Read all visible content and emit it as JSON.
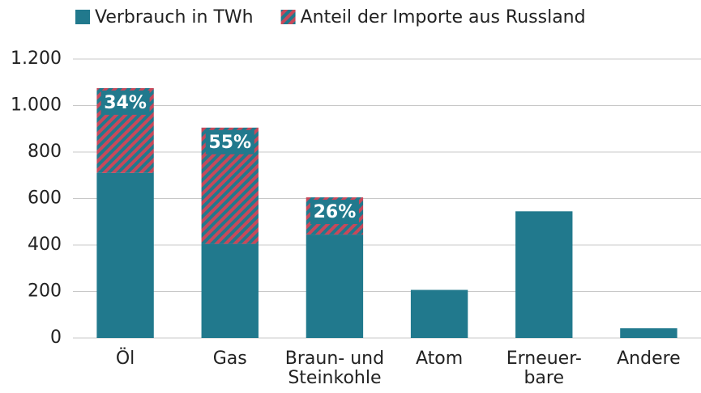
{
  "chart_data": {
    "type": "stacked_bar",
    "categories": [
      "Öl",
      "Gas",
      "Braun- und\nSteinkohle",
      "Atom",
      "Erneuer-\nbare",
      "Andere"
    ],
    "series": [
      {
        "name": "Verbrauch in TWh",
        "color": "#21798d",
        "values": [
          710,
          405,
          445,
          207,
          545,
          42
        ]
      },
      {
        "name": "Anteil der Importe aus Russland",
        "color": "#c8485a",
        "values": [
          365,
          500,
          160,
          null,
          null,
          null
        ]
      }
    ],
    "annotations": [
      "34%",
      "55%",
      "26%"
    ],
    "ylim": [
      0,
      1200
    ],
    "yticks": [
      0,
      200,
      400,
      600,
      800,
      {
        "value": 1000,
        "label": "1.000"
      },
      {
        "value": 1200,
        "label": "1.200"
      }
    ],
    "grid": true,
    "legend": "top"
  }
}
